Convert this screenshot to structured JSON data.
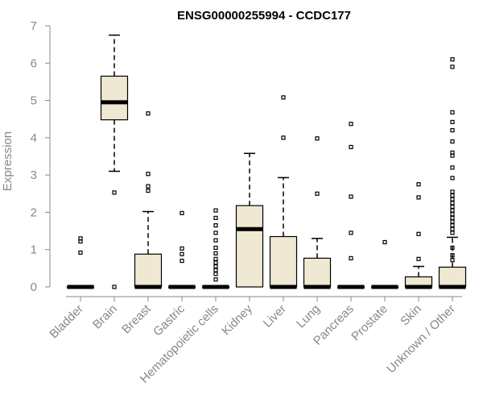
{
  "chart_data": {
    "type": "boxplot",
    "title": "ENSG00000255994 - CCDC177",
    "ylabel": "Expression",
    "xlabel": "",
    "ylim": [
      0,
      7
    ],
    "yticks": [
      0,
      1,
      2,
      3,
      4,
      5,
      6,
      7
    ],
    "categories": [
      "Bladder",
      "Brain",
      "Breast",
      "Gastric",
      "Hematopoietic cells",
      "Kidney",
      "Liver",
      "Lung",
      "Pancreas",
      "Prostate",
      "Skin",
      "Unknown / Other"
    ],
    "box_color": "#efe8d2",
    "grid": false,
    "boxes": [
      {
        "label": "Bladder",
        "q1": 0,
        "median": 0,
        "q3": 0,
        "whisker_low": 0,
        "whisker_high": 0,
        "outliers": [
          0.92,
          1.22,
          1.3
        ]
      },
      {
        "label": "Brain",
        "q1": 4.48,
        "median": 4.95,
        "q3": 5.65,
        "whisker_low": 3.1,
        "whisker_high": 6.75,
        "outliers": [
          2.53,
          0
        ]
      },
      {
        "label": "Breast",
        "q1": 0,
        "median": 0,
        "q3": 0.88,
        "whisker_low": 0,
        "whisker_high": 2.02,
        "outliers": [
          2.58,
          2.7,
          3.03,
          4.65
        ]
      },
      {
        "label": "Gastric",
        "q1": 0,
        "median": 0,
        "q3": 0,
        "whisker_low": 0,
        "whisker_high": 0,
        "outliers": [
          0.7,
          0.88,
          1.03,
          1.98
        ]
      },
      {
        "label": "Hematopoietic cells",
        "q1": 0,
        "median": 0,
        "q3": 0,
        "whisker_low": 0,
        "whisker_high": 0,
        "outliers": [
          0.2,
          0.35,
          0.45,
          0.55,
          0.65,
          0.75,
          0.9,
          1.05,
          1.25,
          1.45,
          1.65,
          1.85,
          2.05
        ]
      },
      {
        "label": "Kidney",
        "q1": 0,
        "median": 1.55,
        "q3": 2.18,
        "whisker_low": 0,
        "whisker_high": 3.58,
        "outliers": []
      },
      {
        "label": "Liver",
        "q1": 0,
        "median": 0,
        "q3": 1.35,
        "whisker_low": 0,
        "whisker_high": 2.93,
        "outliers": [
          4.0,
          5.08
        ]
      },
      {
        "label": "Lung",
        "q1": 0,
        "median": 0,
        "q3": 0.77,
        "whisker_low": 0,
        "whisker_high": 1.3,
        "outliers": [
          2.5,
          3.98
        ]
      },
      {
        "label": "Pancreas",
        "q1": 0,
        "median": 0,
        "q3": 0,
        "whisker_low": 0,
        "whisker_high": 0,
        "outliers": [
          0.77,
          1.45,
          2.42,
          3.75,
          4.37
        ]
      },
      {
        "label": "Prostate",
        "q1": 0,
        "median": 0,
        "q3": 0,
        "whisker_low": 0,
        "whisker_high": 0,
        "outliers": [
          1.2
        ]
      },
      {
        "label": "Skin",
        "q1": 0,
        "median": 0,
        "q3": 0.27,
        "whisker_low": 0,
        "whisker_high": 0.55,
        "outliers": [
          0.75,
          1.42,
          2.4,
          2.75
        ]
      },
      {
        "label": "Unknown / Other",
        "q1": 0,
        "median": 0,
        "q3": 0.53,
        "whisker_low": 0,
        "whisker_high": 1.33,
        "outliers": [
          0.72,
          0.85,
          1.05,
          1.45,
          1.55,
          1.65,
          1.75,
          1.85,
          1.95,
          2.05,
          2.15,
          2.25,
          2.35,
          2.45,
          2.55,
          2.92,
          3.2,
          3.52,
          3.6,
          3.9,
          4.2,
          4.42,
          4.68,
          5.9,
          6.1
        ]
      }
    ]
  }
}
